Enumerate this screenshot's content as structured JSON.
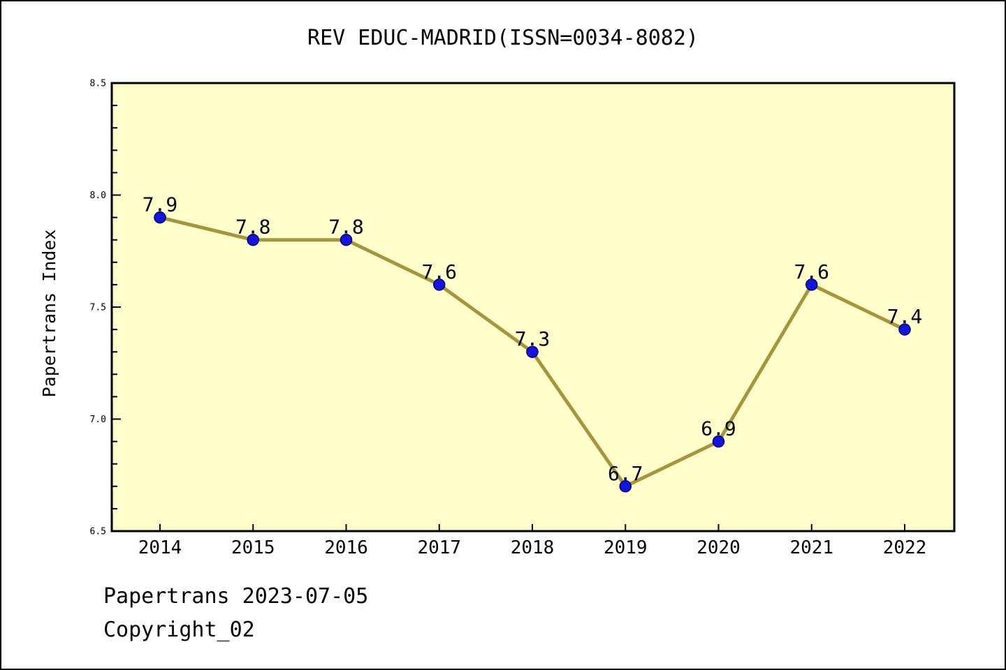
{
  "window": {
    "title": "REV EDUC-MADRID(ISSN=0034-8082)",
    "footer": {
      "line1": "Papertrans 2023-07-05",
      "line2": "Copyright_02"
    }
  },
  "chart_data": {
    "type": "line",
    "title": "REV EDUC-MADRID(ISSN=0034-8082)",
    "categories": [
      "2014",
      "2015",
      "2016",
      "2017",
      "2018",
      "2019",
      "2020",
      "2021",
      "2022"
    ],
    "values": [
      7.9,
      7.8,
      7.8,
      7.6,
      7.3,
      6.7,
      6.9,
      7.6,
      7.4
    ],
    "series_name": "Papertrans Index",
    "xlabel": "",
    "ylabel": "Papertrans Index",
    "ylim": [
      6.5,
      8.5
    ],
    "y_major_ticks": [
      6.5,
      7.0,
      7.5,
      8.0,
      8.5
    ],
    "y_tick_labels": [
      "6.5",
      "7.0",
      "7.5",
      "8.0",
      "8.5"
    ],
    "y_minor_step": 0.1,
    "grid": false,
    "legend_position": "none",
    "point_labels_visible": true,
    "colors": {
      "plot_background": "#FFFFCC",
      "page_background": "#FFFFFF",
      "line": "#A6953C",
      "marker": "#1414E1",
      "marker_edge": "#000066",
      "text": "#000000",
      "axis_border": "#000000"
    }
  }
}
